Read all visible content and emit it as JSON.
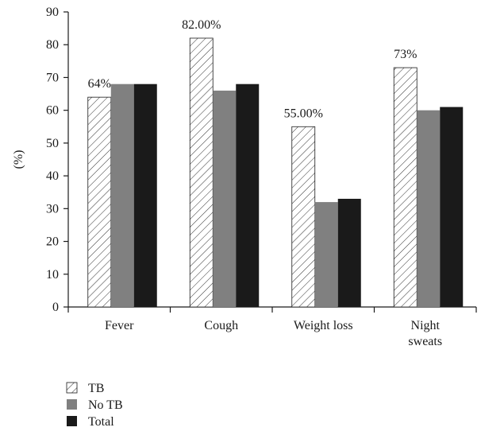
{
  "chart_data": {
    "type": "bar",
    "title": "",
    "xlabel": "",
    "ylabel": "(%)",
    "ylim": [
      0,
      90
    ],
    "yticks": [
      0,
      10,
      20,
      30,
      40,
      50,
      60,
      70,
      80,
      90
    ],
    "grid": false,
    "legend_position": "bottom-left",
    "categories": [
      [
        "Fever"
      ],
      [
        "Cough"
      ],
      [
        "Weight loss"
      ],
      [
        "Night",
        "sweats"
      ]
    ],
    "series": [
      {
        "name": "TB",
        "values": [
          64,
          82,
          55,
          73
        ],
        "style": "hatched",
        "color": "#ffffff",
        "labels": [
          "64%",
          "82.00%",
          "55.00%",
          "73%"
        ]
      },
      {
        "name": "No TB",
        "values": [
          68,
          66,
          32,
          60
        ],
        "style": "solid",
        "color": "#808080"
      },
      {
        "name": "Total",
        "values": [
          68,
          68,
          33,
          61
        ],
        "style": "solid",
        "color": "#1a1a1a"
      }
    ]
  }
}
